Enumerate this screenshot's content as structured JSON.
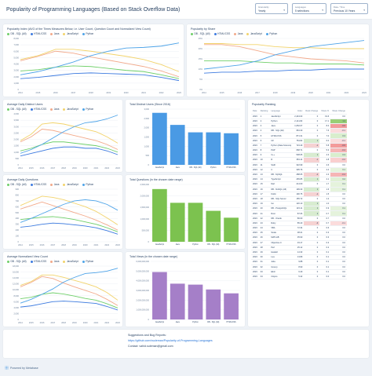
{
  "header": {
    "title": "Popularity of Programming Languages (Based on Stack Overflow Data)",
    "filters": [
      {
        "label": "Granularity",
        "value": "Yearly"
      },
      {
        "label": "Languages",
        "value": "5 selections"
      },
      {
        "label": "Date / Time",
        "value": "Previous 10 Years"
      }
    ]
  },
  "legend5": [
    {
      "name": "DB - SQL (All)",
      "color": "#6fcf6a"
    },
    {
      "name": "HTML/CSS",
      "color": "#3d7be0"
    },
    {
      "name": "Java",
      "color": "#f2a98a"
    },
    {
      "name": "JavaScript",
      "color": "#f2d36b"
    },
    {
      "name": "Python",
      "color": "#4da3e8"
    }
  ],
  "icons": {
    "chevron": "chevron-down-icon",
    "logo": "logo-icon"
  },
  "charts": {
    "index": {
      "title": "Popularity Index (AVG of the Times Measures Below, i.e. User Count, Question Count and Normalized View Count)",
      "chart_data": {
        "type": "line",
        "x": [
          "2014",
          "2015",
          "2016",
          "2017",
          "2018",
          "2019",
          "2020",
          "2021",
          "2022",
          "2023"
        ],
        "yticks": [
          "8,000",
          "7,000",
          "6,000",
          "5,000",
          "4,000",
          "3,000",
          "2,000",
          "1,000",
          "0"
        ],
        "ylim": [
          0,
          8000
        ],
        "series": [
          {
            "name": "DB - SQL (All)",
            "values": [
              2900,
              3100,
              3500,
              3700,
              3600,
              3300,
              3000,
              2800,
              2300,
              1700
            ]
          },
          {
            "name": "HTML/CSS",
            "values": [
              1700,
              1900,
              2200,
              2500,
              2600,
              2500,
              2400,
              2300,
              1900,
              1400
            ]
          },
          {
            "name": "Java",
            "values": [
              4500,
              5200,
              6000,
              5700,
              5100,
              4600,
              4100,
              3600,
              2900,
              2000
            ]
          },
          {
            "name": "JavaScript",
            "values": [
              4700,
              5300,
              6300,
              6300,
              6000,
              5600,
              5200,
              4700,
              3900,
              2800
            ]
          },
          {
            "name": "Python",
            "values": [
              2300,
              2800,
              3500,
              4300,
              5300,
              6000,
              6500,
              6600,
              6800,
              7300
            ]
          }
        ]
      }
    },
    "share": {
      "title": "Popularity by Share",
      "chart_data": {
        "type": "line",
        "x": [
          "2014",
          "2015",
          "2016",
          "2017",
          "2018",
          "2019",
          "2020",
          "2021",
          "2022",
          "2023"
        ],
        "yticks": [
          "25%",
          "20%",
          "15%",
          "10%",
          "5%",
          "0%"
        ],
        "ylim": [
          0,
          25
        ],
        "series": [
          {
            "name": "DB - SQL (All)",
            "values": [
              14,
              14,
              14,
              13.5,
              13,
              13,
              12.5,
              12.5,
              12.5,
              12
            ]
          },
          {
            "name": "HTML/CSS",
            "values": [
              8,
              8.5,
              8.5,
              9,
              9,
              9.5,
              9.5,
              10,
              10,
              10
            ]
          },
          {
            "name": "Java",
            "values": [
              22,
              22,
              21,
              19,
              17,
              16,
              15,
              14.5,
              14,
              13
            ]
          },
          {
            "name": "JavaScript",
            "values": [
              22.5,
              22.5,
              22,
              22,
              21,
              20.5,
              20.5,
              20,
              20,
              20
            ]
          },
          {
            "name": "Python",
            "values": [
              10,
              11,
              12,
              14,
              17,
              19,
              21,
              22,
              23,
              24
            ]
          }
        ]
      }
    },
    "dusers": {
      "title": "Average Daily Distinct Users",
      "chart_data": {
        "type": "line",
        "x": [
          "2014",
          "2015",
          "2016",
          "2017",
          "2018",
          "2019",
          "2020",
          "2021",
          "2022",
          "2023"
        ],
        "yticks": [
          "4,000",
          "3,500",
          "3,000",
          "2,500",
          "2,000",
          "1,500",
          "1,000",
          "500",
          "0"
        ],
        "ylim": [
          0,
          4000
        ],
        "series": [
          {
            "name": "DB - SQL (All)",
            "values": [
              1100,
              1300,
              1600,
              1800,
              1800,
              1700,
              1600,
              1500,
              1300,
              1000
            ]
          },
          {
            "name": "HTML/CSS",
            "values": [
              700,
              900,
              1100,
              1300,
              1400,
              1400,
              1300,
              1300,
              1100,
              800
            ]
          },
          {
            "name": "Java",
            "values": [
              1800,
              2200,
              2800,
              2700,
              2500,
              2300,
              2100,
              1900,
              1600,
              1200
            ]
          },
          {
            "name": "JavaScript",
            "values": [
              1900,
              2400,
              3200,
              3300,
              3200,
              3000,
              2800,
              2600,
              2200,
              1700
            ]
          },
          {
            "name": "Python",
            "values": [
              900,
              1200,
              1600,
              2100,
              2600,
              3000,
              3300,
              3400,
              3600,
              3900
            ]
          }
        ]
      }
    },
    "dquestions": {
      "title": "Average Daily Questions",
      "chart_data": {
        "type": "line",
        "x": [
          "2014",
          "2015",
          "2016",
          "2017",
          "2018",
          "2019",
          "2020",
          "2021",
          "2022",
          "2023"
        ],
        "yticks": [
          "900",
          "800",
          "700",
          "600",
          "500",
          "400",
          "300",
          "200",
          "100",
          "0"
        ],
        "ylim": [
          0,
          900
        ],
        "series": [
          {
            "name": "DB - SQL (All)",
            "values": [
              380,
              400,
              420,
              430,
              410,
              380,
              340,
              300,
              240,
              170
            ]
          },
          {
            "name": "HTML/CSS",
            "values": [
              250,
              270,
              300,
              320,
              310,
              290,
              270,
              240,
              190,
              130
            ]
          },
          {
            "name": "Java",
            "values": [
              560,
              620,
              680,
              620,
              560,
              500,
              440,
              370,
              290,
              200
            ]
          },
          {
            "name": "JavaScript",
            "values": [
              620,
              700,
              780,
              760,
              720,
              660,
              600,
              520,
              410,
              290
            ]
          },
          {
            "name": "Python",
            "values": [
              330,
              400,
              480,
              560,
              640,
              700,
              720,
              700,
              640,
              540
            ]
          }
        ]
      }
    },
    "views": {
      "title": "Average Normalized View Count",
      "chart_data": {
        "type": "line",
        "x": [
          "2014",
          "2015",
          "2016",
          "2017",
          "2018",
          "2019",
          "2020",
          "2021",
          "2022",
          "2023"
        ],
        "yticks": [
          "18,000",
          "16,000",
          "14,000",
          "12,000",
          "10,000",
          "8,000",
          "6,000",
          "4,000",
          "2,000",
          "0"
        ],
        "ylim": [
          0,
          18000
        ],
        "series": [
          {
            "name": "DB - SQL (All)",
            "values": [
              7000,
              7500,
              8500,
              9000,
              8600,
              7900,
              7100,
              6500,
              5300,
              3900
            ]
          },
          {
            "name": "HTML/CSS",
            "values": [
              4200,
              4600,
              5300,
              6000,
              6200,
              6000,
              5700,
              5400,
              4400,
              3200
            ]
          },
          {
            "name": "Java",
            "values": [
              11000,
              12500,
              14500,
              13800,
              12300,
              11000,
              9800,
              8600,
              6800,
              4700
            ]
          },
          {
            "name": "JavaScript",
            "values": [
              11500,
              12800,
              15000,
              15000,
              14200,
              13200,
              12200,
              11000,
              9100,
              6500
            ]
          },
          {
            "name": "Python",
            "values": [
              5500,
              6800,
              8500,
              10300,
              12600,
              14200,
              15500,
              15800,
              16300,
              17300
            ]
          }
        ]
      }
    },
    "bar_users": {
      "title": "Total Distinct Users (Since 2016)",
      "chart_data": {
        "type": "bar",
        "categories": [
          "JavaScript",
          "Java",
          "DB - SQL (All)",
          "Python",
          "HTML/CSS"
        ],
        "values": [
          2800,
          2150,
          1750,
          1750,
          1700
        ],
        "yticks": [
          "3,000",
          "2,500",
          "2,000",
          "1,500",
          "1,000",
          "500",
          "0"
        ],
        "ylim": [
          0,
          3000
        ],
        "color": "#4a9ae4"
      }
    },
    "bar_questions": {
      "title": "Total Questions (in the chosen date range)",
      "chart_data": {
        "type": "bar",
        "categories": [
          "JavaScript",
          "Java",
          "Python",
          "DB - SQL (All)",
          "HTML/CSS"
        ],
        "values": [
          2300000,
          1700000,
          1700000,
          1350000,
          1050000
        ],
        "yticks": [
          "2,500,000",
          "2,000,000",
          "1,500,000",
          "1,000,000",
          "500,000",
          "0"
        ],
        "ylim": [
          0,
          2500000
        ],
        "color": "#7cc24f"
      }
    },
    "bar_views": {
      "title": "Total Views (in the chosen date range)",
      "chart_data": {
        "type": "bar",
        "categories": [
          "JavaScript",
          "Java",
          "Python",
          "DB - SQL (All)",
          "HTML/CSS"
        ],
        "values": [
          4900000000,
          3700000000,
          3600000000,
          3100000000,
          2700000000
        ],
        "yticks": [
          "6,000,000,000",
          "5,000,000,000",
          "4,000,000,000",
          "3,000,000,000",
          "2,000,000,000",
          "1,000,000,000",
          "0"
        ],
        "ylim": [
          0,
          6000000000
        ],
        "color": "#a57fc8"
      }
    }
  },
  "ranking": {
    "title": "Popularity Ranking",
    "headers": [
      "Date",
      "Ranking",
      "Language",
      "Index",
      "Rank Change",
      "Share %",
      "Share Change"
    ],
    "rows": [
      [
        "2023",
        "1",
        "JavaScript",
        "2,443.03",
        "0",
        "19.6",
        "0.0"
      ],
      [
        "2023",
        "2",
        "Python",
        "2,141.82",
        "0",
        "17.1",
        "1.4"
      ],
      [
        "2023",
        "3",
        "Java",
        "1,052.07",
        "0",
        "8.4",
        "-0.6"
      ],
      [
        "2023",
        "4",
        "DB - SQL (All)",
        "954.30",
        "0",
        "7.6",
        "-0.1"
      ],
      [
        "2023",
        "5",
        "HTML/CSS",
        "871.31",
        "0",
        "7.0",
        "0.3"
      ],
      [
        "2023",
        "6",
        "C#",
        "754.82",
        "1",
        "6.0",
        "-0.1"
      ],
      [
        "2023",
        "7",
        "Python (Data Science)",
        "723.49",
        "-1",
        "5.8",
        "-0.6"
      ],
      [
        "2023",
        "8",
        "PHP",
        "668.71",
        "0",
        "5.3",
        "-0.4"
      ],
      [
        "2023",
        "9",
        "C++",
        "538.05",
        "1",
        "4.3",
        "0.3"
      ],
      [
        "2023",
        "10",
        "R",
        "353.14",
        "-1",
        "2.8",
        "-0.2"
      ],
      [
        "2023",
        "11",
        "Swift",
        "322.99",
        "0",
        "2.6",
        "0.0"
      ],
      [
        "2023",
        "12",
        "C",
        "305.76",
        "0",
        "2.4",
        "0.1"
      ],
      [
        "2023",
        "13",
        "DB - MySQL",
        "288.05",
        "-2",
        "2.3",
        "-0.4"
      ],
      [
        "2023",
        "14",
        "TypeScript",
        "265.85",
        "1",
        "2.1",
        "0.2"
      ],
      [
        "2023",
        "15",
        "Dart",
        "214.60",
        "0",
        "1.7",
        "0.1"
      ],
      [
        "2023",
        "16",
        "DB - NoSQL (All)",
        "199.30",
        "1",
        "1.6",
        "0.1"
      ],
      [
        "2023",
        "17",
        "Kotlin",
        "190.75",
        "-1",
        "1.5",
        "0.0"
      ],
      [
        "2023",
        "18",
        "DB - SQL Server",
        "155.72",
        "0",
        "1.2",
        "0.0"
      ],
      [
        "2023",
        "19",
        "Go",
        "120.10",
        "1",
        "1.0",
        "0.0"
      ],
      [
        "2023",
        "20",
        "DB - PostgreSQL",
        "115.11",
        "1",
        "0.9",
        "0.1"
      ],
      [
        "2023",
        "21",
        "Rust",
        "87.06",
        "2",
        "0.7",
        "0.1"
      ],
      [
        "2023",
        "22",
        "DB - Oracle",
        "86.60",
        "0",
        "0.7",
        "0.0"
      ],
      [
        "2023",
        "23",
        "Ruby",
        "85.40",
        "-3",
        "0.7",
        "-0.1"
      ],
      [
        "2023",
        "24",
        "VBA",
        "72.34",
        "0",
        "0.6",
        "0.0"
      ],
      [
        "2023",
        "25",
        "Scala",
        "38.21",
        "0",
        "0.3",
        "0.0"
      ],
      [
        "2023",
        "26",
        "MATLAB",
        "35.90",
        "0",
        "0.3",
        "0.0"
      ],
      [
        "2023",
        "27",
        "Objective-C",
        "33.17",
        "0",
        "0.3",
        "0.0"
      ],
      [
        "2023",
        "28",
        "Perl",
        "25.12",
        "0",
        "0.2",
        "0.0"
      ],
      [
        "2023",
        "29",
        "Haskell",
        "14.33",
        "0",
        "0.1",
        "0.0"
      ],
      [
        "2023",
        "30",
        "Lua",
        "13.89",
        "0",
        "0.1",
        "0.0"
      ],
      [
        "2023",
        "31",
        "Julia",
        "9.88",
        "0",
        "0.1",
        "0.0"
      ],
      [
        "2023",
        "32",
        "Groovy",
        "8.90",
        "0",
        "0.1",
        "0.0"
      ],
      [
        "2023",
        "33",
        "Elixir",
        "6.29",
        "0",
        "0.1",
        "0.0"
      ],
      [
        "2023",
        "34",
        "Clojure",
        "5.42",
        "0",
        "0.0",
        "0.0"
      ]
    ]
  },
  "footer": {
    "line1": "Suggestions and Bug Reports:",
    "link": "https://github.com/vsuleman/Popularity-of-Programming-Languages",
    "line3": "Contact: vahid.suleman@gmail.com",
    "powered": "Powered by Metabase"
  }
}
